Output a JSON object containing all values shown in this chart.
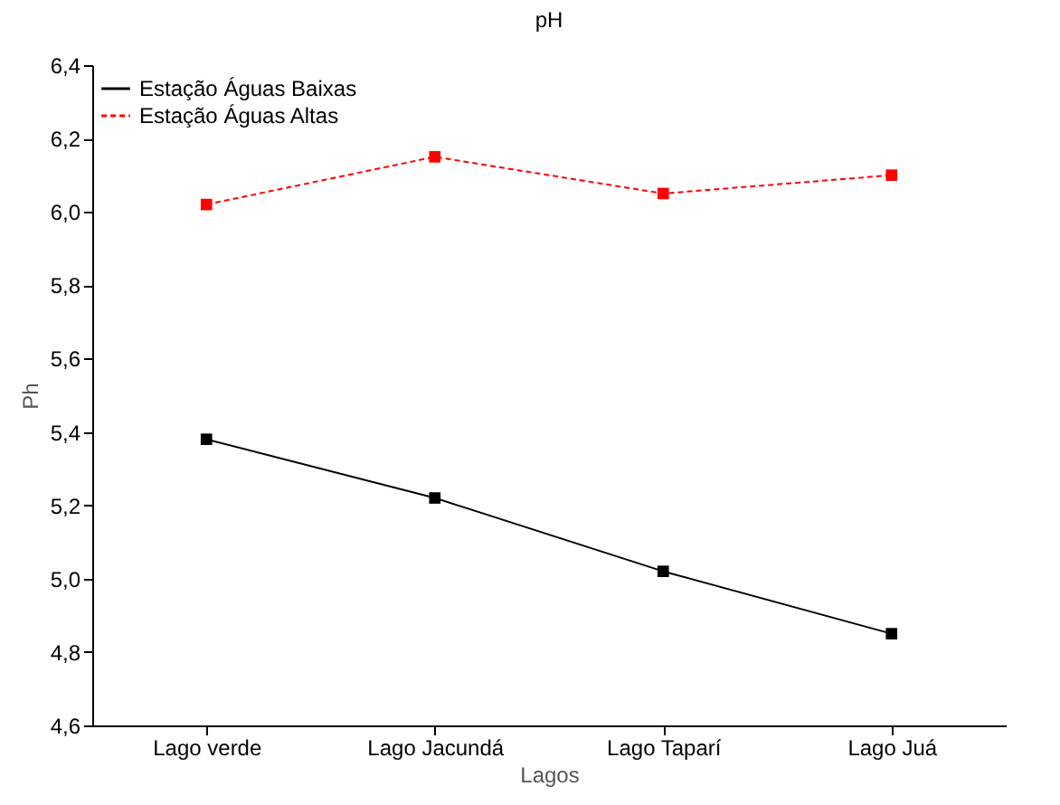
{
  "chart_data": {
    "type": "line",
    "title": "pH",
    "xlabel": "Lagos",
    "ylabel": "Ph",
    "categories": [
      "Lago verde",
      "Lago Jacundá",
      "Lago Taparí",
      "Lago Juá"
    ],
    "series": [
      {
        "name": "Estação Águas Baixas",
        "color": "#000000",
        "line_style": "solid",
        "values": [
          5.38,
          5.22,
          5.02,
          4.85
        ]
      },
      {
        "name": "Estação Águas Altas",
        "color": "#ff0000",
        "line_style": "dashed",
        "values": [
          6.02,
          6.15,
          6.05,
          6.1
        ]
      }
    ],
    "ylim": [
      4.6,
      6.4
    ],
    "yticks": [
      {
        "value": 4.6,
        "label": "4,6"
      },
      {
        "value": 4.8,
        "label": "4,8"
      },
      {
        "value": 5.0,
        "label": "5,0"
      },
      {
        "value": 5.2,
        "label": "5,2"
      },
      {
        "value": 5.4,
        "label": "5,4"
      },
      {
        "value": 5.6,
        "label": "5,6"
      },
      {
        "value": 5.8,
        "label": "5,8"
      },
      {
        "value": 6.0,
        "label": "6,0"
      },
      {
        "value": 6.2,
        "label": "6,2"
      },
      {
        "value": 6.4,
        "label": "6,4"
      }
    ],
    "marker": "square",
    "legend": "top left",
    "grid": false
  }
}
